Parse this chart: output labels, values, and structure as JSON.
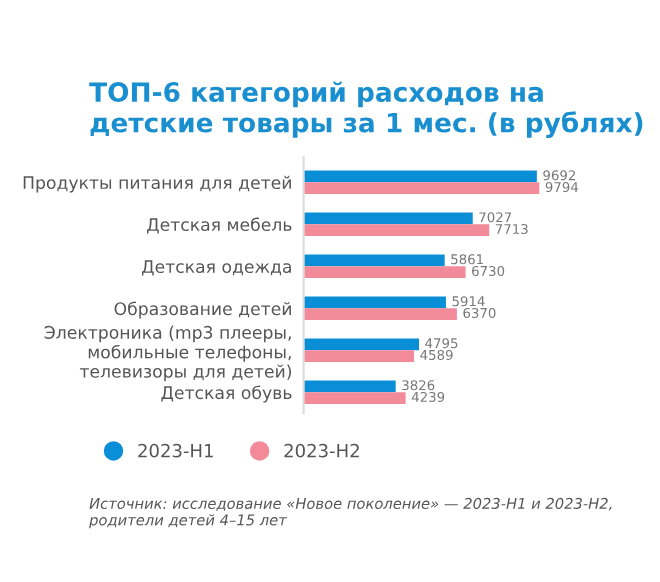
{
  "chart_data": {
    "type": "bar",
    "orientation": "horizontal",
    "title": "ТОП-6 категорий расходов на детские товары за 1 мес. (в рублях)",
    "categories": [
      "Продукты питания для детей",
      "Детская мебель",
      "Детская одежда",
      "Образование детей",
      "Электроника (mp3 плееры,\nмобильные телефоны,\nтелевизоры для детей)",
      "Детская обувь"
    ],
    "series": [
      {
        "name": "2023-H1",
        "color": "#0a8fd6",
        "values": [
          9692,
          7027,
          5861,
          5914,
          4795,
          3826
        ]
      },
      {
        "name": "2023-H2",
        "color": "#f28a9a",
        "values": [
          9794,
          7713,
          6730,
          6370,
          4589,
          4239
        ]
      }
    ],
    "data_labels": true,
    "tick_labels": "y",
    "legend": "bottom left",
    "grid": false,
    "annotations": [
      "Источник: исследование «Новое поколение» — 2023-H1 и 2023-H2, родители детей 4–15 лет"
    ]
  }
}
